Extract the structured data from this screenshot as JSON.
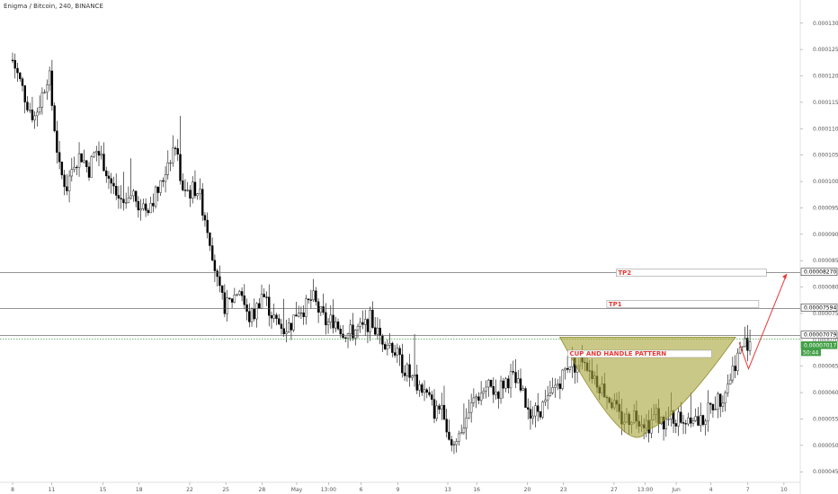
{
  "header": {
    "title": "Enigma / Bitcoin, 240, BINANCE"
  },
  "chart_data": {
    "type": "candlestick",
    "title": "Enigma / Bitcoin, 240, BINANCE",
    "ylim": [
      4.3e-06,
      1.32e-05
    ],
    "y_ticks": [
      "0.00013000",
      "0.00012500",
      "0.00012000",
      "0.00011500",
      "0.00011000",
      "0.00010500",
      "0.00010000",
      "0.00009500",
      "0.00009000",
      "0.00008500",
      "0.00008000",
      "0.00007500",
      "0.00007000",
      "0.00006500",
      "0.00006000",
      "0.00005500",
      "0.00005000",
      "0.00004500"
    ],
    "y_tick_values": [
      13.0,
      12.5,
      12.0,
      11.5,
      11.0,
      10.5,
      10.0,
      9.5,
      9.0,
      8.5,
      8.0,
      7.5,
      7.0,
      6.5,
      6.0,
      5.5,
      5.0,
      4.5
    ],
    "x_ticks": [
      {
        "label": "8",
        "t": 0.0
      },
      {
        "label": "11",
        "t": 0.054
      },
      {
        "label": "15",
        "t": 0.125
      },
      {
        "label": "18",
        "t": 0.175
      },
      {
        "label": "22",
        "t": 0.245
      },
      {
        "label": "25",
        "t": 0.295
      },
      {
        "label": "28",
        "t": 0.345
      },
      {
        "label": "May",
        "t": 0.393
      },
      {
        "label": "13:00",
        "t": 0.437
      },
      {
        "label": "6",
        "t": 0.482
      },
      {
        "label": "9",
        "t": 0.533
      },
      {
        "label": "13",
        "t": 0.602
      },
      {
        "label": "16",
        "t": 0.642
      },
      {
        "label": "20",
        "t": 0.712
      },
      {
        "label": "23",
        "t": 0.762
      },
      {
        "label": "27",
        "t": 0.832
      },
      {
        "label": "13:00",
        "t": 0.875
      },
      {
        "label": "Jun",
        "t": 0.918
      },
      {
        "label": "4",
        "t": 0.966
      },
      {
        "label": "7",
        "t": 1.017
      },
      {
        "label": "10",
        "t": 1.067
      }
    ],
    "price_path": [
      [
        0.0,
        12.3
      ],
      [
        0.01,
        11.9
      ],
      [
        0.02,
        11.5
      ],
      [
        0.03,
        11.2
      ],
      [
        0.04,
        11.6
      ],
      [
        0.05,
        12.1
      ],
      [
        0.055,
        11.4
      ],
      [
        0.065,
        10.2
      ],
      [
        0.075,
        9.9
      ],
      [
        0.085,
        10.4
      ],
      [
        0.095,
        10.5
      ],
      [
        0.105,
        10.2
      ],
      [
        0.115,
        10.6
      ],
      [
        0.125,
        10.4
      ],
      [
        0.135,
        10.0
      ],
      [
        0.145,
        9.7
      ],
      [
        0.155,
        9.6
      ],
      [
        0.165,
        9.8
      ],
      [
        0.175,
        9.6
      ],
      [
        0.185,
        9.5
      ],
      [
        0.195,
        9.7
      ],
      [
        0.205,
        9.9
      ],
      [
        0.215,
        10.4
      ],
      [
        0.225,
        10.7
      ],
      [
        0.235,
        9.9
      ],
      [
        0.245,
        9.8
      ],
      [
        0.255,
        9.9
      ],
      [
        0.265,
        9.4
      ],
      [
        0.275,
        8.8
      ],
      [
        0.285,
        7.9
      ],
      [
        0.295,
        7.6
      ],
      [
        0.305,
        7.8
      ],
      [
        0.315,
        8.0
      ],
      [
        0.325,
        7.4
      ],
      [
        0.335,
        7.5
      ],
      [
        0.345,
        7.9
      ],
      [
        0.355,
        7.6
      ],
      [
        0.365,
        7.3
      ],
      [
        0.375,
        7.2
      ],
      [
        0.385,
        7.3
      ],
      [
        0.395,
        7.6
      ],
      [
        0.405,
        7.6
      ],
      [
        0.415,
        7.8
      ],
      [
        0.425,
        7.5
      ],
      [
        0.435,
        7.3
      ],
      [
        0.445,
        7.4
      ],
      [
        0.455,
        7.2
      ],
      [
        0.465,
        7.1
      ],
      [
        0.475,
        7.2
      ],
      [
        0.485,
        7.2
      ],
      [
        0.495,
        7.4
      ],
      [
        0.505,
        7.1
      ],
      [
        0.515,
        7.0
      ],
      [
        0.525,
        6.9
      ],
      [
        0.535,
        6.6
      ],
      [
        0.545,
        6.4
      ],
      [
        0.555,
        6.2
      ],
      [
        0.565,
        6.1
      ],
      [
        0.575,
        5.9
      ],
      [
        0.585,
        5.6
      ],
      [
        0.595,
        5.8
      ],
      [
        0.605,
        5.1
      ],
      [
        0.612,
        5.0
      ],
      [
        0.62,
        5.3
      ],
      [
        0.63,
        5.6
      ],
      [
        0.64,
        5.9
      ],
      [
        0.65,
        6.0
      ],
      [
        0.66,
        6.1
      ],
      [
        0.67,
        6.0
      ],
      [
        0.68,
        6.2
      ],
      [
        0.69,
        6.3
      ],
      [
        0.7,
        6.1
      ],
      [
        0.71,
        5.8
      ],
      [
        0.72,
        5.6
      ],
      [
        0.73,
        5.7
      ],
      [
        0.74,
        5.8
      ],
      [
        0.75,
        6.1
      ],
      [
        0.76,
        6.3
      ],
      [
        0.77,
        6.6
      ],
      [
        0.78,
        6.5
      ],
      [
        0.79,
        6.7
      ],
      [
        0.8,
        6.4
      ],
      [
        0.81,
        6.2
      ],
      [
        0.82,
        6.0
      ],
      [
        0.83,
        5.8
      ],
      [
        0.84,
        5.5
      ],
      [
        0.85,
        5.5
      ],
      [
        0.86,
        5.6
      ],
      [
        0.87,
        5.5
      ],
      [
        0.88,
        5.4
      ],
      [
        0.89,
        5.6
      ],
      [
        0.9,
        5.4
      ],
      [
        0.91,
        5.5
      ],
      [
        0.92,
        5.5
      ],
      [
        0.93,
        5.5
      ],
      [
        0.94,
        5.6
      ],
      [
        0.95,
        5.4
      ],
      [
        0.96,
        5.6
      ],
      [
        0.97,
        5.8
      ],
      [
        0.98,
        5.9
      ],
      [
        0.99,
        6.2
      ],
      [
        1.0,
        6.6
      ],
      [
        1.01,
        6.9
      ],
      [
        1.02,
        7.0
      ]
    ],
    "lines": [
      {
        "name": "TP2",
        "value": 8.27,
        "tag": "0.00008270",
        "color": "#555555",
        "style": "solid"
      },
      {
        "name": "TP1",
        "value": 7.594,
        "tag": "0.00007594",
        "color": "#555555",
        "style": "solid"
      },
      {
        "name": "resistance",
        "value": 7.079,
        "tag": "0.00007079",
        "color": "#555555",
        "style": "solid"
      },
      {
        "name": "current",
        "value": 7.017,
        "tag": "0.00007017",
        "color": "#43a047",
        "style": "dotted"
      }
    ],
    "current_price_countdown": "50:44",
    "annotations": {
      "tp2_label": "TP2",
      "tp1_label": "TP1",
      "pattern_label": "CUP AND HANDLE PATTERN"
    },
    "colors": {
      "candle": "#000000",
      "cup_fill": "#a6a336",
      "arrow": "#e53935",
      "label_text": "#e53935",
      "current_tag": "#43a047"
    }
  }
}
